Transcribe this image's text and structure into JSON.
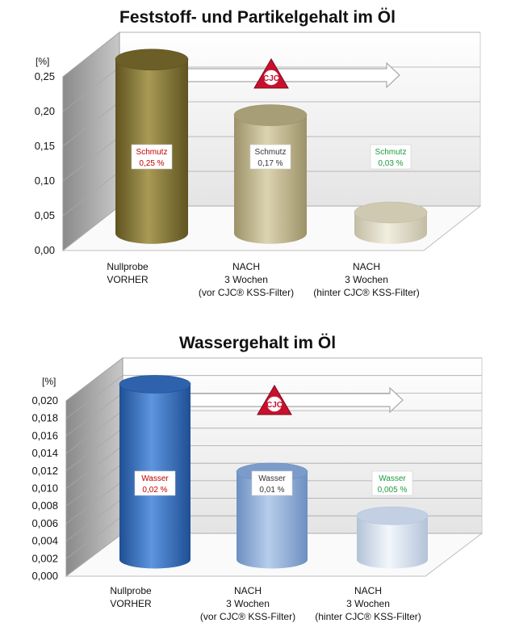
{
  "chart_data": [
    {
      "type": "bar",
      "title": "Feststoff- und Partikelgehalt im Öl",
      "ylabel": "[%]",
      "ylim": [
        0,
        0.25
      ],
      "yticks": [
        "0,00",
        "0,05",
        "0,10",
        "0,15",
        "0,20",
        "0,25"
      ],
      "categories": [
        [
          "Nullprobe",
          "VORHER"
        ],
        [
          "NACH",
          "3 Wochen",
          "(vor CJC® KSS-Filter)"
        ],
        [
          "NACH",
          "3 Wochen",
          "(hinter CJC® KSS-Filter)"
        ]
      ],
      "values": [
        0.25,
        0.17,
        0.03
      ],
      "data_labels": [
        [
          "Schmutz",
          "0,25 %"
        ],
        [
          "Schmutz",
          "0,17 %"
        ],
        [
          "Schmutz",
          "0,03 %"
        ]
      ],
      "label_colors": [
        "#c00000",
        "#333333",
        "#1e9a3e"
      ],
      "bar_colors": [
        [
          "#5f5320",
          "#a99a55",
          "#6b5e26"
        ],
        [
          "#9c9168",
          "#dcd4b1",
          "#a79d76"
        ],
        [
          "#c2bca4",
          "#f1eedf",
          "#cfc9b2"
        ]
      ],
      "logo_text": "CJC",
      "grid": true,
      "three_d": true
    },
    {
      "type": "bar",
      "title": "Wassergehalt im Öl",
      "ylabel": "[%]",
      "ylim": [
        0,
        0.02
      ],
      "yticks": [
        "0,000",
        "0,002",
        "0,004",
        "0,006",
        "0,008",
        "0,010",
        "0,012",
        "0,014",
        "0,016",
        "0,018",
        "0,020"
      ],
      "categories": [
        [
          "Nullprobe",
          "VORHER"
        ],
        [
          "NACH",
          "3 Wochen",
          "(vor CJC® KSS-Filter)"
        ],
        [
          "NACH",
          "3 Wochen",
          "(hinter CJC® KSS-Filter)"
        ]
      ],
      "values": [
        0.02,
        0.01,
        0.005
      ],
      "data_labels": [
        [
          "Wasser",
          "0,02 %"
        ],
        [
          "Wasser",
          "0,01 %"
        ],
        [
          "Wasser",
          "0,005 %"
        ]
      ],
      "label_colors": [
        "#c00000",
        "#333333",
        "#1e9a3e"
      ],
      "bar_colors": [
        [
          "#1f4f94",
          "#5d95de",
          "#2e62ad"
        ],
        [
          "#6d8fc1",
          "#b7cdeb",
          "#7b9ccb"
        ],
        [
          "#b3c2d8",
          "#f3f7fc",
          "#c3d0e3"
        ]
      ],
      "logo_text": "CJC",
      "grid": true,
      "three_d": true
    }
  ]
}
